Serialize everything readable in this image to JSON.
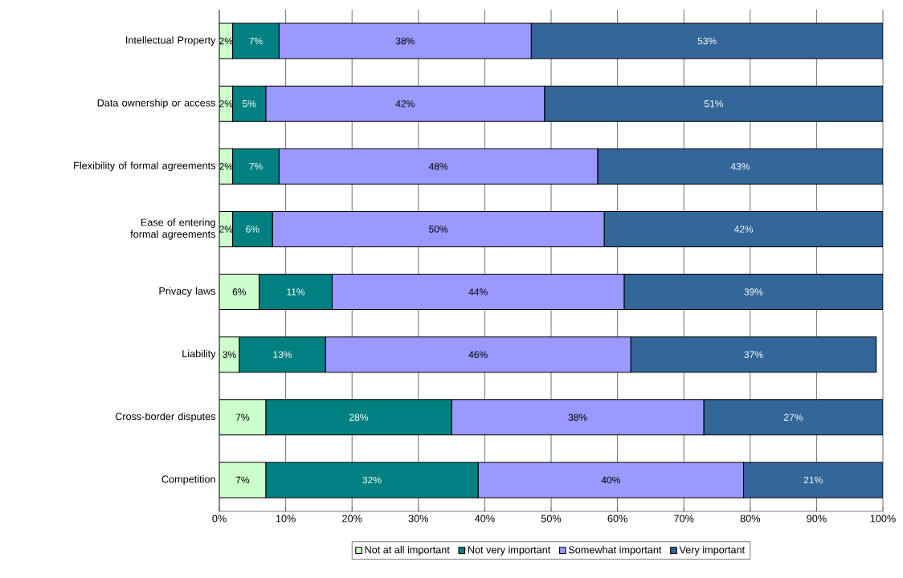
{
  "chart_data": {
    "type": "bar",
    "orientation": "horizontal",
    "stacked": true,
    "grid": "x",
    "legend": "bottom",
    "categories": [
      "Intellectual Property",
      "Data ownership or access",
      "Flexibility of formal agreements",
      "Ease of entering formal agreements",
      "Privacy laws",
      "Liability",
      "Cross-border disputes",
      "Competition"
    ],
    "xlim": [
      0,
      100
    ],
    "xticks": [
      {
        "value": 0,
        "label": "0%"
      },
      {
        "value": 10,
        "label": "10%"
      },
      {
        "value": 20,
        "label": "20%"
      },
      {
        "value": 30,
        "label": "30%"
      },
      {
        "value": 40,
        "label": "40%"
      },
      {
        "value": 50,
        "label": "50%"
      },
      {
        "value": 60,
        "label": "60%"
      },
      {
        "value": 70,
        "label": "70%"
      },
      {
        "value": 80,
        "label": "80%"
      },
      {
        "value": 90,
        "label": "90%"
      },
      {
        "value": 100,
        "label": "100%"
      }
    ],
    "series": [
      {
        "name": "Not at all important",
        "color": "#ccffcc",
        "values": [
          2,
          2,
          2,
          2,
          6,
          3,
          7,
          7
        ],
        "value_labels": [
          "2%",
          "2%",
          "2%",
          "2%",
          "6%",
          "3%",
          "7%",
          "7%"
        ]
      },
      {
        "name": "Not very important",
        "color": "#008080",
        "values": [
          7,
          5,
          7,
          6,
          11,
          13,
          28,
          32
        ],
        "value_labels": [
          "7%",
          "5%",
          "7%",
          "6%",
          "11%",
          "13%",
          "28%",
          "32%"
        ]
      },
      {
        "name": "Somewhat important",
        "color": "#9999ff",
        "values": [
          38,
          42,
          48,
          50,
          44,
          46,
          38,
          40
        ],
        "value_labels": [
          "38%",
          "42%",
          "48%",
          "50%",
          "44%",
          "46%",
          "38%",
          "40%"
        ]
      },
      {
        "name": "Very important",
        "color": "#336699",
        "values": [
          53,
          51,
          43,
          42,
          39,
          37,
          27,
          21
        ],
        "value_labels": [
          "53%",
          "51%",
          "43%",
          "42%",
          "39%",
          "37%",
          "27%",
          "21%"
        ]
      }
    ]
  }
}
